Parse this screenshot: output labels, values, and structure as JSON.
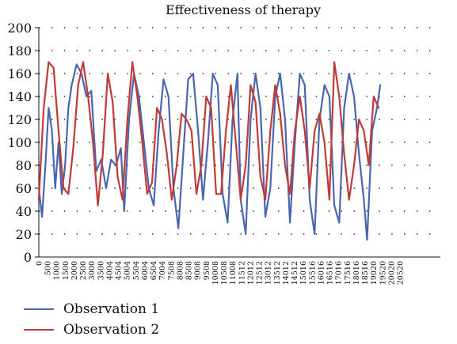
{
  "chart_data": {
    "type": "line",
    "title": "Effectiveness of therapy",
    "xlabel": "",
    "ylabel": "",
    "ylim": [
      0,
      200
    ],
    "xlim": [
      0,
      22000
    ],
    "yticks": [
      0,
      20,
      40,
      60,
      80,
      100,
      120,
      140,
      160,
      180,
      200
    ],
    "xtick_labels": [
      "0",
      "500",
      "1000",
      "1500",
      "2000",
      "2500",
      "3000",
      "3500",
      "4004",
      "4504",
      "5004",
      "5504",
      "6004",
      "6504",
      "7004",
      "7508",
      "8008",
      "8508",
      "9008",
      "9508",
      "10008",
      "10508",
      "11008",
      "11512",
      "12012",
      "12512",
      "13012",
      "13512",
      "14012",
      "14512",
      "15016",
      "15516",
      "16016",
      "16516",
      "17016",
      "17516",
      "18016",
      "18516",
      "19020",
      "19520",
      "20020",
      "20520"
    ],
    "grid": "dotted",
    "legend_position": "bottom-left",
    "series": [
      {
        "name": "Observation 1",
        "color": "#4a66b0",
        "x": [
          0,
          200,
          400,
          600,
          800,
          1000,
          1200,
          1400,
          1600,
          1800,
          2000,
          2300,
          2600,
          2900,
          3200,
          3500,
          3800,
          4100,
          4400,
          4700,
          5000,
          5200,
          5500,
          5800,
          6100,
          6400,
          6700,
          7000,
          7300,
          7600,
          7900,
          8200,
          8500,
          8800,
          9100,
          9400,
          9700,
          10000,
          10300,
          10600,
          10900,
          11200,
          11500,
          11800,
          12100,
          12300,
          12600,
          12900,
          13200,
          13500,
          13800,
          14100,
          14400,
          14700,
          15000,
          15300,
          15600,
          15900,
          16200,
          16500,
          16800,
          17100,
          17400,
          17700,
          18000,
          18300,
          18600,
          18900,
          19200,
          19500,
          19800,
          20000,
          20300,
          20600,
          20800
        ],
        "values": [
          60,
          35,
          80,
          130,
          110,
          60,
          100,
          55,
          80,
          130,
          150,
          168,
          160,
          140,
          145,
          75,
          85,
          60,
          85,
          80,
          95,
          40,
          120,
          160,
          140,
          100,
          60,
          45,
          110,
          155,
          140,
          60,
          25,
          90,
          155,
          160,
          110,
          50,
          100,
          160,
          150,
          55,
          30,
          120,
          160,
          50,
          20,
          120,
          160,
          130,
          35,
          60,
          140,
          160,
          120,
          30,
          100,
          160,
          150,
          50,
          20,
          120,
          150,
          140,
          45,
          30,
          130,
          160,
          140,
          90,
          50,
          15,
          110,
          130,
          150
        ]
      },
      {
        "name": "Observation 2",
        "color": "#c23a35",
        "x": [
          0,
          300,
          600,
          900,
          1200,
          1500,
          1800,
          2100,
          2400,
          2700,
          3000,
          3300,
          3600,
          3900,
          4200,
          4500,
          4800,
          5100,
          5400,
          5700,
          6000,
          6300,
          6600,
          6900,
          7200,
          7500,
          7800,
          8100,
          8400,
          8700,
          9000,
          9300,
          9600,
          9900,
          10200,
          10500,
          10800,
          11100,
          11400,
          11700,
          12000,
          12300,
          12600,
          12900,
          13200,
          13500,
          13800,
          14100,
          14400,
          14700,
          15000,
          15300,
          15600,
          15900,
          16200,
          16500,
          16800,
          17100,
          17400,
          17700,
          18000,
          18300,
          18600,
          18900,
          19200,
          19500,
          19800,
          20100,
          20400,
          20700
        ],
        "values": [
          50,
          130,
          170,
          165,
          110,
          60,
          55,
          95,
          150,
          170,
          140,
          100,
          45,
          90,
          160,
          135,
          70,
          50,
          120,
          170,
          140,
          100,
          55,
          65,
          130,
          120,
          90,
          50,
          80,
          125,
          120,
          110,
          55,
          80,
          140,
          130,
          55,
          55,
          110,
          150,
          100,
          50,
          80,
          150,
          135,
          70,
          50,
          110,
          150,
          125,
          80,
          55,
          110,
          140,
          110,
          60,
          110,
          125,
          100,
          50,
          170,
          140,
          90,
          50,
          80,
          120,
          110,
          80,
          140,
          130
        ]
      }
    ]
  }
}
